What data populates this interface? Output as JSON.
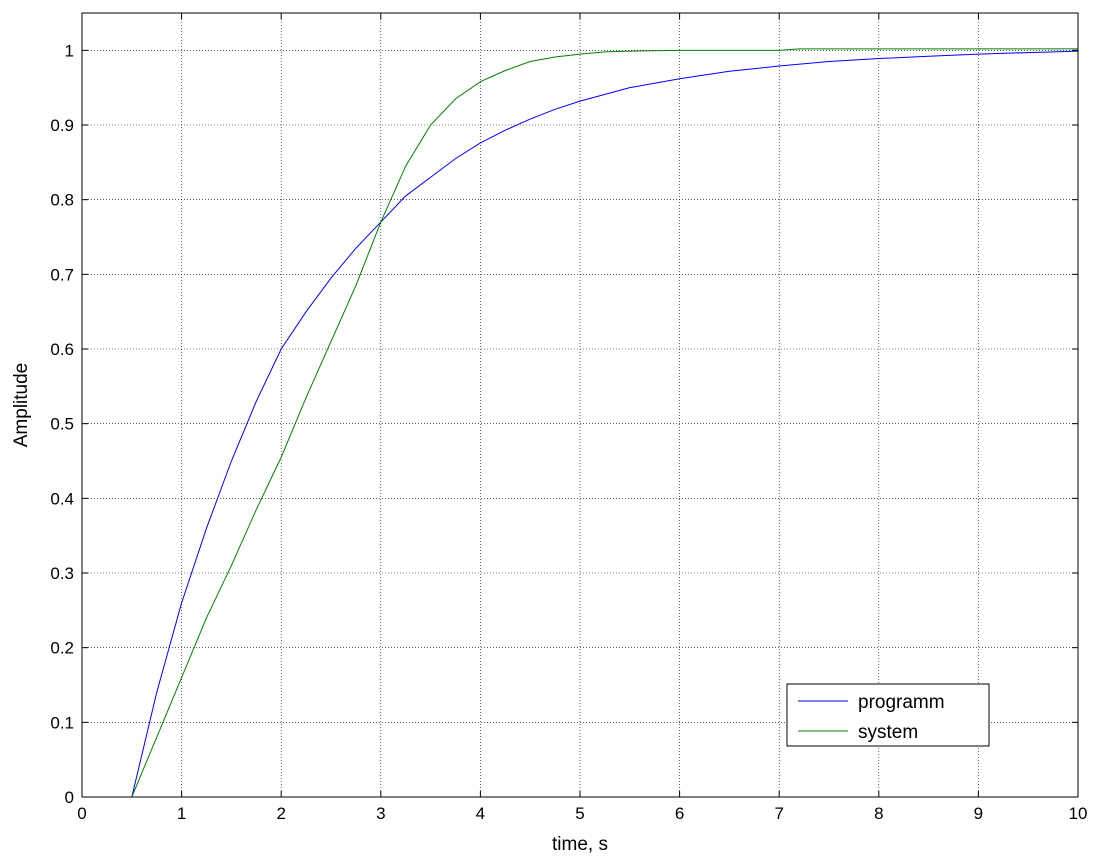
{
  "chart_data": {
    "type": "line",
    "title": "",
    "xlabel": "time, s",
    "ylabel": "Amplitude",
    "xlim": [
      0,
      10
    ],
    "ylim": [
      0,
      1.05
    ],
    "xticks": [
      "0",
      "1",
      "2",
      "3",
      "4",
      "5",
      "6",
      "7",
      "8",
      "9",
      "10"
    ],
    "yticks": [
      "0",
      "0.1",
      "0.2",
      "0.3",
      "0.4",
      "0.5",
      "0.6",
      "0.7",
      "0.8",
      "0.9",
      "1"
    ],
    "grid": true,
    "legend_position": "bottom-right",
    "series": [
      {
        "name": "programm",
        "color": "#0000ff",
        "x": [
          0.5,
          0.75,
          1.0,
          1.25,
          1.5,
          1.75,
          2.0,
          2.25,
          2.5,
          2.75,
          3.0,
          3.25,
          3.5,
          3.75,
          4.0,
          4.25,
          4.5,
          4.75,
          5.0,
          5.5,
          6.0,
          6.5,
          7.0,
          7.5,
          8.0,
          8.5,
          9.0,
          9.5,
          10.0
        ],
        "y": [
          0.0,
          0.14,
          0.26,
          0.36,
          0.45,
          0.53,
          0.6,
          0.65,
          0.695,
          0.735,
          0.77,
          0.805,
          0.83,
          0.855,
          0.876,
          0.893,
          0.908,
          0.921,
          0.932,
          0.95,
          0.962,
          0.972,
          0.979,
          0.985,
          0.989,
          0.992,
          0.995,
          0.997,
          0.999
        ]
      },
      {
        "name": "system",
        "color": "#008000",
        "x": [
          0.5,
          0.75,
          1.0,
          1.25,
          1.5,
          1.75,
          2.0,
          2.25,
          2.5,
          2.75,
          3.0,
          3.25,
          3.5,
          3.75,
          4.0,
          4.25,
          4.5,
          4.75,
          5.0,
          5.25,
          5.5,
          6.0,
          7.0,
          7.2,
          8.0,
          9.0,
          10.0
        ],
        "y": [
          0.0,
          0.08,
          0.16,
          0.24,
          0.31,
          0.385,
          0.455,
          0.535,
          0.61,
          0.685,
          0.77,
          0.845,
          0.9,
          0.935,
          0.958,
          0.973,
          0.985,
          0.991,
          0.995,
          0.998,
          0.999,
          1.0,
          1.0,
          1.002,
          1.002,
          1.002,
          1.002
        ]
      }
    ]
  }
}
